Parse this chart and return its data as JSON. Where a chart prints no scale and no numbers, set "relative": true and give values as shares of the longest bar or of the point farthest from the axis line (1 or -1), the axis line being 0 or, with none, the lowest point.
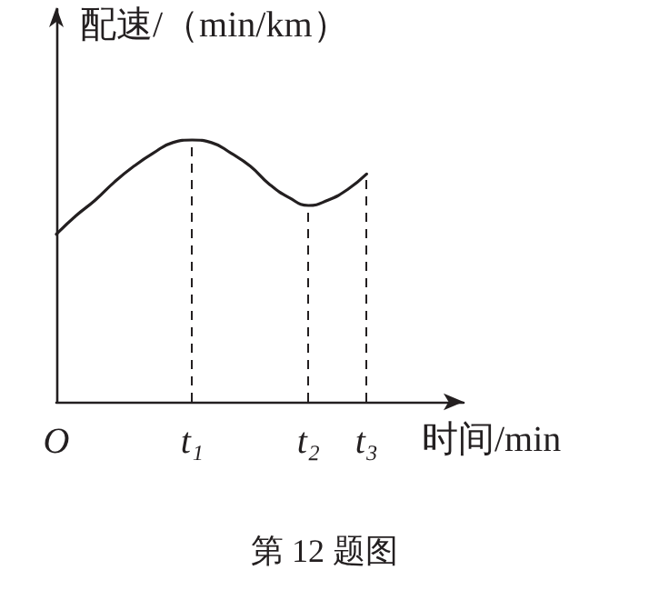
{
  "chart_data": {
    "type": "line",
    "relative": true,
    "ylabel": "配速/（min/km）",
    "xlabel": "时间/min",
    "annotations": [
      "第 12 题图"
    ],
    "categories": [
      "O",
      null,
      null,
      null,
      null,
      null,
      null,
      "t₁",
      null,
      null,
      null,
      null,
      null,
      "t₂",
      null,
      null,
      "t₃",
      null,
      null,
      null,
      null,
      null
    ],
    "series": [
      {
        "color": "#231f20",
        "values": [
          0.64,
          0.71,
          0.77,
          0.84,
          0.9,
          0.95,
          0.99,
          1,
          0.99,
          0.95,
          0.9,
          0.83,
          0.78,
          0.75,
          0.77,
          0.81,
          0.87,
          null,
          null,
          null,
          null,
          null
        ]
      }
    ],
    "ref_lines": [
      {
        "axis": "x",
        "value": "t₁",
        "line_style": "dashed"
      },
      {
        "axis": "x",
        "value": "t₂",
        "line_style": "dashed"
      },
      {
        "axis": "x",
        "value": "t₃",
        "line_style": "dashed"
      }
    ],
    "marker": "none",
    "line_style": "solid"
  }
}
